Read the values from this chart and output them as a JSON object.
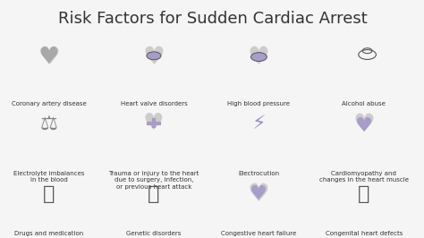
{
  "title": "Risk Factors for Sudden Cardiac Arrest",
  "title_fontsize": 13,
  "background_color": "#f5f5f5",
  "text_color": "#333333",
  "icon_color": "#7b68a0",
  "icon_outline": "#555555",
  "grid_rows": 3,
  "grid_cols": 4,
  "labels": [
    "Coronary artery disease",
    "Heart valve disorders",
    "High blood pressure",
    "Alcohol abuse",
    "Electrolyte imbalances\nin the blood",
    "Trauma or injury to the heart\ndue to surgery, infection,\nor previous heart attack",
    "Electrocution",
    "Cardiomyopathy and\nchanges in the heart muscle",
    "Drugs and medication",
    "Genetic disorders",
    "Congestive heart failure",
    "Congenital heart defects"
  ],
  "icon_symbols": [
    "♥",
    "♥",
    "♥",
    "👤",
    "⚖",
    "♥",
    "⚡",
    "♥",
    "💉",
    "🧬",
    "♥",
    "👶"
  ],
  "figsize": [
    4.74,
    2.66
  ],
  "dpi": 100,
  "label_fontsize": 5.0,
  "icon_fontsize": 18
}
